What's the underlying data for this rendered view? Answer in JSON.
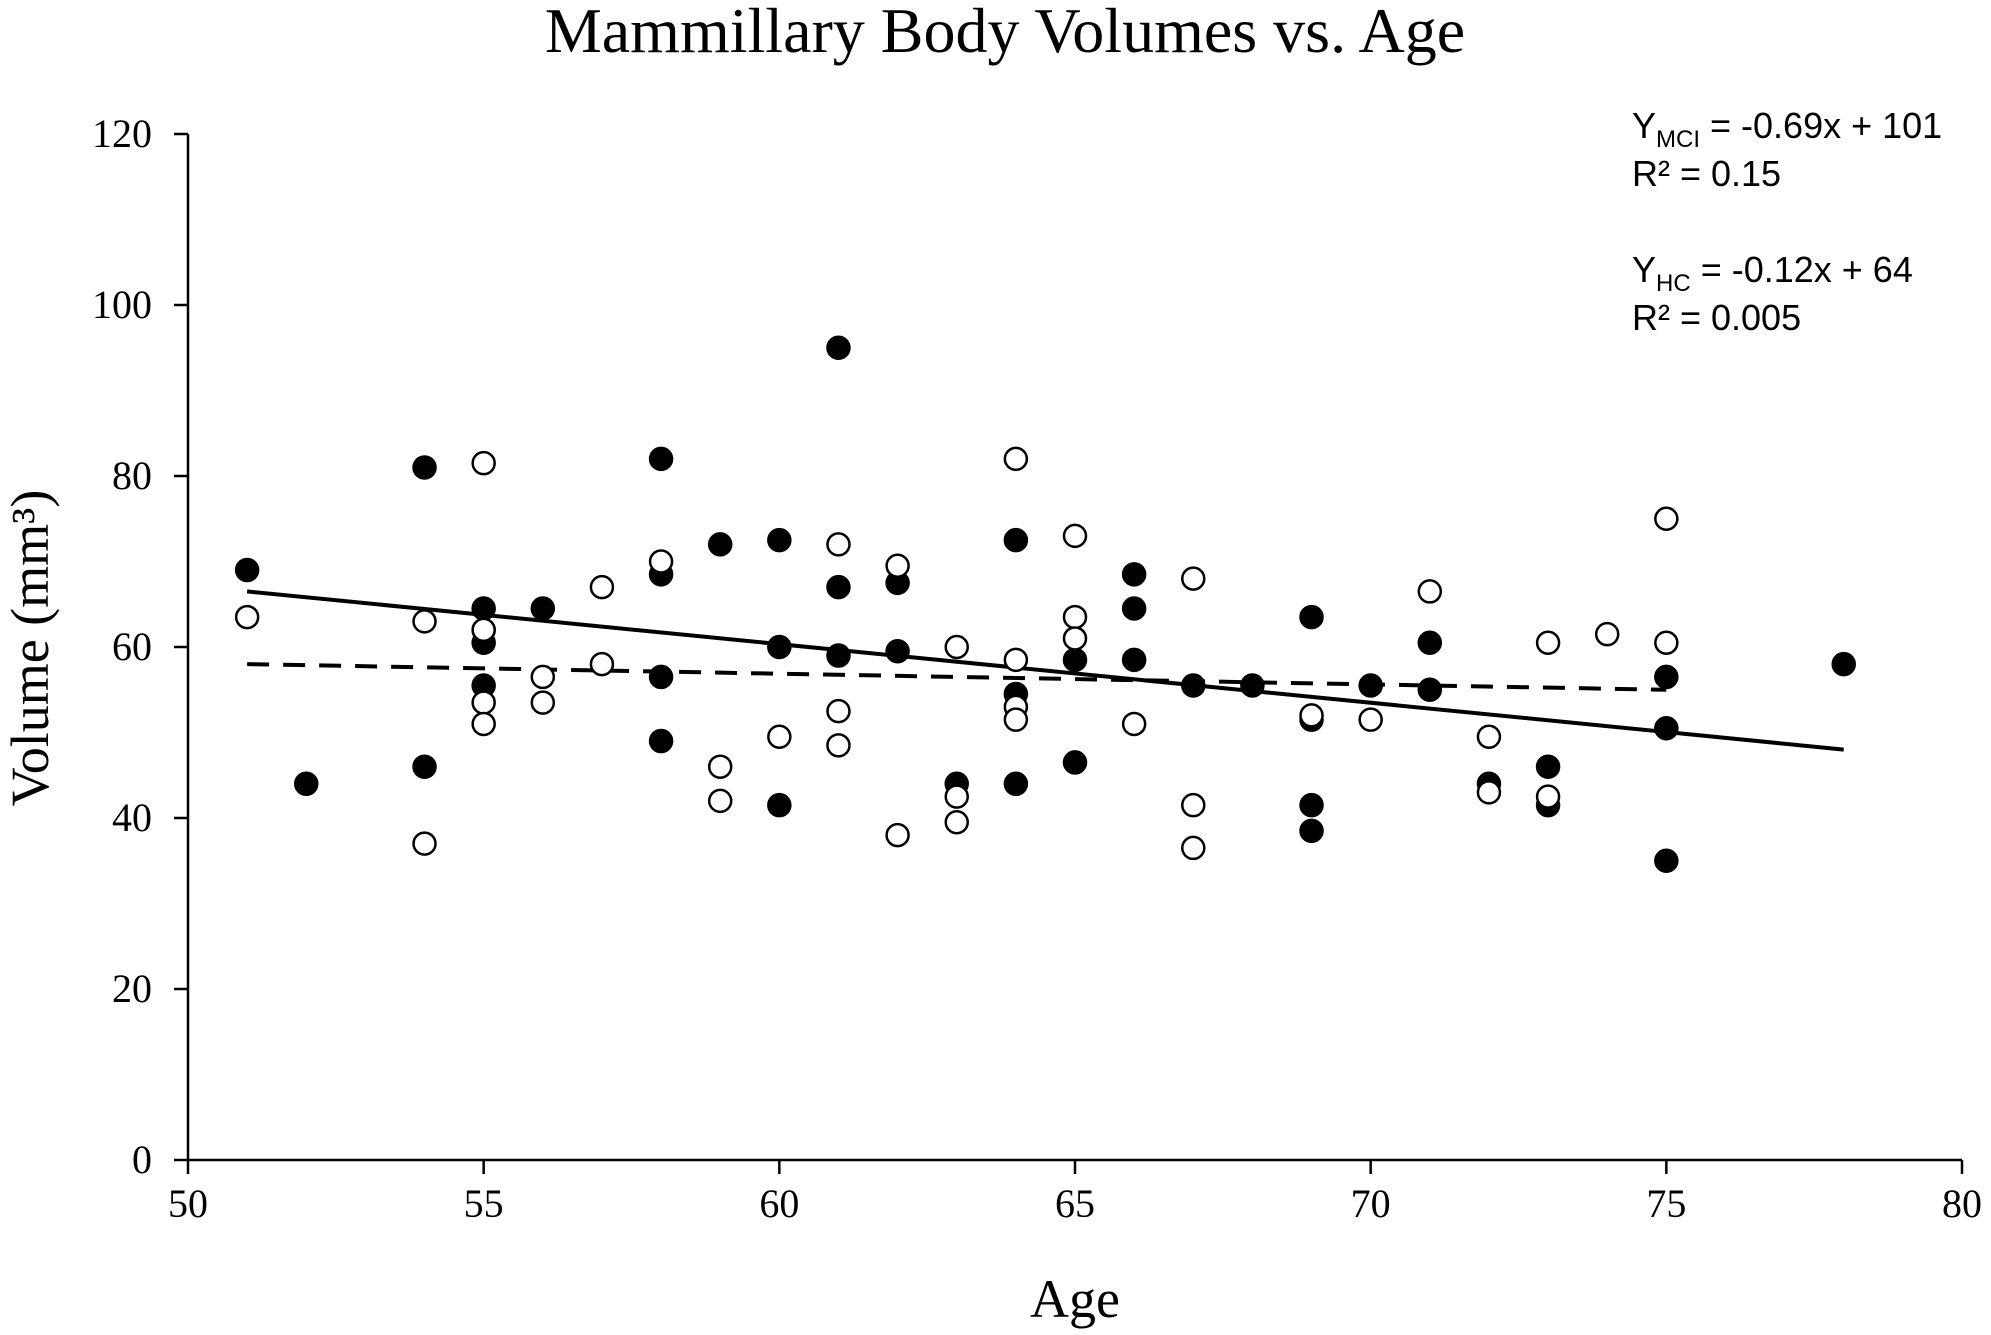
{
  "chart_data": {
    "type": "scatter",
    "title": "Mammillary Body Volumes vs. Age",
    "xlabel": "Age",
    "ylabel": "Volume (mm³)",
    "xlim": [
      50,
      80
    ],
    "ylim": [
      0,
      120
    ],
    "xticks": [
      50,
      55,
      60,
      65,
      70,
      75,
      80
    ],
    "yticks": [
      0,
      20,
      40,
      60,
      80,
      100,
      120
    ],
    "grid": false,
    "series": [
      {
        "name": "MCI",
        "marker": "filled-circle",
        "points": [
          [
            51,
            69
          ],
          [
            52,
            44
          ],
          [
            54,
            81
          ],
          [
            54,
            46
          ],
          [
            55,
            64.5
          ],
          [
            55,
            62
          ],
          [
            55,
            60.5
          ],
          [
            55,
            55.5
          ],
          [
            56,
            64.5
          ],
          [
            58,
            82
          ],
          [
            58,
            68.5
          ],
          [
            58,
            56.5
          ],
          [
            58,
            49
          ],
          [
            59,
            72
          ],
          [
            60,
            72.5
          ],
          [
            60,
            60
          ],
          [
            60,
            41.5
          ],
          [
            61,
            95
          ],
          [
            61,
            67
          ],
          [
            61,
            59
          ],
          [
            62,
            67.5
          ],
          [
            62,
            59.5
          ],
          [
            63,
            44
          ],
          [
            64,
            72.5
          ],
          [
            64,
            54.5
          ],
          [
            64,
            44
          ],
          [
            65,
            58.5
          ],
          [
            65,
            46.5
          ],
          [
            66,
            68.5
          ],
          [
            66,
            64.5
          ],
          [
            66,
            58.5
          ],
          [
            67,
            55.5
          ],
          [
            68,
            55.5
          ],
          [
            69,
            63.5
          ],
          [
            69,
            51.5
          ],
          [
            69,
            41.5
          ],
          [
            69,
            38.5
          ],
          [
            70,
            55.5
          ],
          [
            71,
            60.5
          ],
          [
            71,
            55
          ],
          [
            72,
            44
          ],
          [
            73,
            46
          ],
          [
            73,
            41.5
          ],
          [
            75,
            56.5
          ],
          [
            75,
            50.5
          ],
          [
            75,
            35
          ],
          [
            78,
            58
          ]
        ],
        "trendline": {
          "style": "solid",
          "x": [
            51,
            78
          ],
          "y": [
            66.5,
            48
          ]
        }
      },
      {
        "name": "HC",
        "marker": "open-circle",
        "points": [
          [
            51,
            63.5
          ],
          [
            54,
            63
          ],
          [
            54,
            37
          ],
          [
            55,
            81.5
          ],
          [
            55,
            62
          ],
          [
            55,
            53.5
          ],
          [
            55,
            51
          ],
          [
            56,
            56.5
          ],
          [
            56,
            53.5
          ],
          [
            57,
            67
          ],
          [
            57,
            58
          ],
          [
            58,
            70
          ],
          [
            59,
            46
          ],
          [
            59,
            42
          ],
          [
            60,
            49.5
          ],
          [
            61,
            72
          ],
          [
            61,
            52.5
          ],
          [
            61,
            48.5
          ],
          [
            62,
            69.5
          ],
          [
            62,
            38
          ],
          [
            63,
            60
          ],
          [
            63,
            42.5
          ],
          [
            63,
            39.5
          ],
          [
            64,
            82
          ],
          [
            64,
            58.5
          ],
          [
            64,
            53
          ],
          [
            64,
            51.5
          ],
          [
            65,
            73
          ],
          [
            65,
            63.5
          ],
          [
            65,
            61
          ],
          [
            66,
            51
          ],
          [
            67,
            68
          ],
          [
            67,
            41.5
          ],
          [
            67,
            36.5
          ],
          [
            69,
            52
          ],
          [
            70,
            51.5
          ],
          [
            71,
            66.5
          ],
          [
            72,
            49.5
          ],
          [
            72,
            43
          ],
          [
            73,
            60.5
          ],
          [
            73,
            42.5
          ],
          [
            74,
            61.5
          ],
          [
            75,
            75
          ],
          [
            75,
            60.5
          ]
        ],
        "trendline": {
          "style": "dashed",
          "x": [
            51,
            75
          ],
          "y": [
            58,
            55
          ]
        }
      }
    ],
    "annotations": {
      "mci_equation": {
        "prefix": "Y",
        "sub": "MCI",
        "rest": " = -0.69x + 101",
        "r2": "R² = 0.15"
      },
      "hc_equation": {
        "prefix": "Y",
        "sub": "HC",
        "rest": " = -0.12x + 64",
        "r2": "R² = 0.005"
      }
    }
  }
}
